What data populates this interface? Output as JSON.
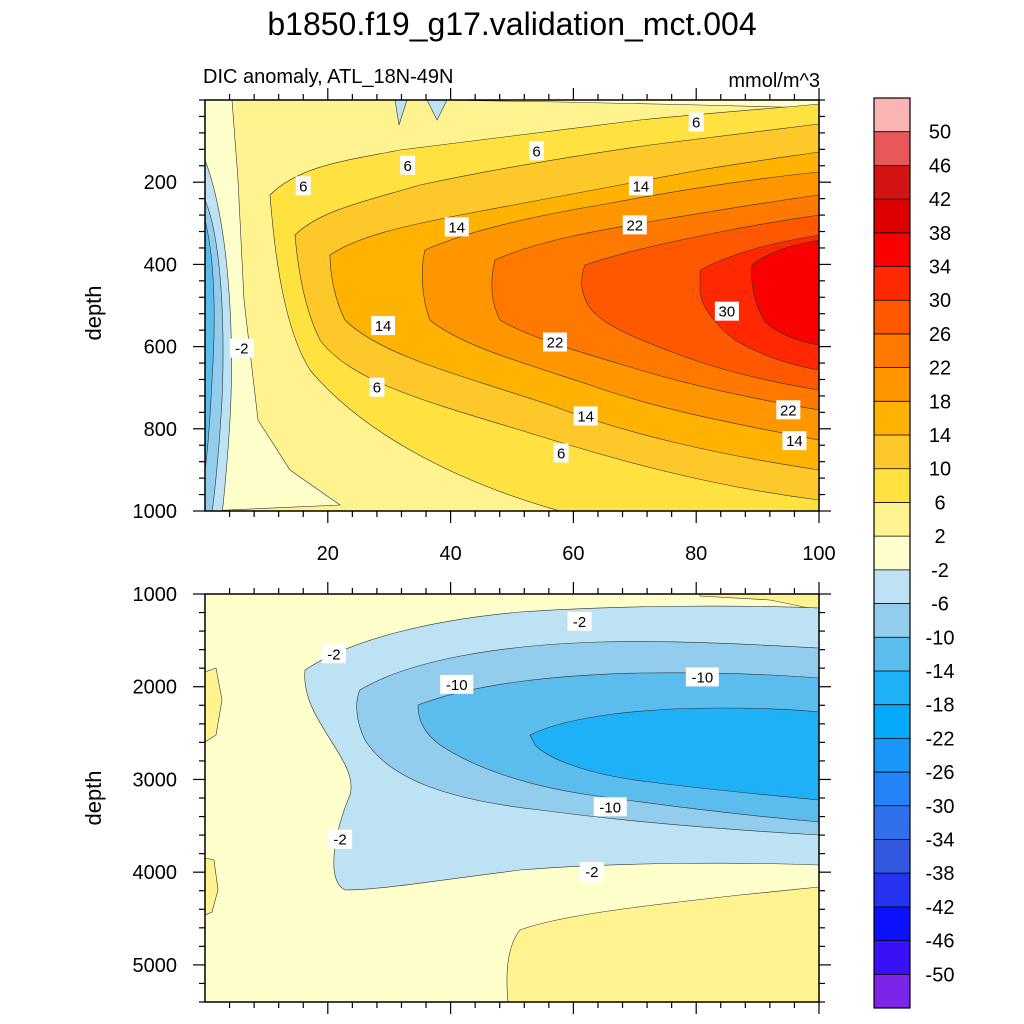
{
  "figure": {
    "title": "b1850.f19_g17.validation_mct.004",
    "subtitle_left": "DIC anomaly, ATL_18N-49N",
    "subtitle_right": "mmol/m^3"
  },
  "chart_data": [
    {
      "type": "contour",
      "panel": "upper",
      "xlabel": "",
      "ylabel": "depth",
      "xlim": [
        0,
        100
      ],
      "ylim": [
        0,
        1000
      ],
      "y_reversed": true,
      "xticks": [
        20,
        40,
        60,
        80,
        100
      ],
      "yticks": [
        200,
        400,
        600,
        800,
        1000
      ],
      "contour_interval": 4,
      "contour_labels": [
        {
          "x": 16,
          "y": 210,
          "text": "6"
        },
        {
          "x": 33,
          "y": 160,
          "text": "6"
        },
        {
          "x": 54,
          "y": 125,
          "text": "6"
        },
        {
          "x": 80,
          "y": 55,
          "text": "6"
        },
        {
          "x": 41,
          "y": 310,
          "text": "14"
        },
        {
          "x": 71,
          "y": 210,
          "text": "14"
        },
        {
          "x": 70,
          "y": 305,
          "text": "22"
        },
        {
          "x": 85,
          "y": 515,
          "text": "30"
        },
        {
          "x": 29,
          "y": 550,
          "text": "14"
        },
        {
          "x": 57,
          "y": 590,
          "text": "22"
        },
        {
          "x": 28,
          "y": 700,
          "text": "6"
        },
        {
          "x": 62,
          "y": 770,
          "text": "14"
        },
        {
          "x": 95,
          "y": 755,
          "text": "22"
        },
        {
          "x": 58,
          "y": 860,
          "text": "6"
        },
        {
          "x": 96,
          "y": 830,
          "text": "14"
        },
        {
          "x": 6,
          "y": 605,
          "text": "-2"
        }
      ]
    },
    {
      "type": "contour",
      "panel": "lower",
      "xlabel": "",
      "ylabel": "depth",
      "xlim": [
        0,
        100
      ],
      "ylim": [
        1000,
        5400
      ],
      "y_reversed": true,
      "yticks": [
        1000,
        2000,
        3000,
        4000,
        5000
      ],
      "contour_interval": 4,
      "contour_labels": [
        {
          "x": 61,
          "y": 1300,
          "text": "-2"
        },
        {
          "x": 21,
          "y": 1650,
          "text": "-2"
        },
        {
          "x": 41,
          "y": 1980,
          "text": "-10"
        },
        {
          "x": 81,
          "y": 1900,
          "text": "-10"
        },
        {
          "x": 66,
          "y": 3300,
          "text": "-10"
        },
        {
          "x": 22,
          "y": 3650,
          "text": "-2"
        },
        {
          "x": 63,
          "y": 4000,
          "text": "-2"
        }
      ]
    }
  ],
  "colorbar": {
    "labels": [
      "50",
      "46",
      "42",
      "38",
      "34",
      "30",
      "26",
      "22",
      "18",
      "14",
      "10",
      "6",
      "2",
      "-2",
      "-6",
      "-10",
      "-14",
      "-18",
      "-22",
      "-26",
      "-30",
      "-34",
      "-38",
      "-42",
      "-46",
      "-50"
    ],
    "colors": [
      "#fbb4b4",
      "#e85858",
      "#d31414",
      "#dd0000",
      "#fa0000",
      "#ff2800",
      "#ff5800",
      "#ff7800",
      "#ff9600",
      "#ffb200",
      "#ffc82a",
      "#ffe13f",
      "#fff390",
      "#ffffcc",
      "#bde2f3",
      "#93cdee",
      "#5bbcee",
      "#1fb1f8",
      "#06aafc",
      "#1a97fb",
      "#2484f7",
      "#3070ea",
      "#3358e2",
      "#2534f0",
      "#0a12fc",
      "#3a10f8",
      "#7c24e8"
    ]
  }
}
